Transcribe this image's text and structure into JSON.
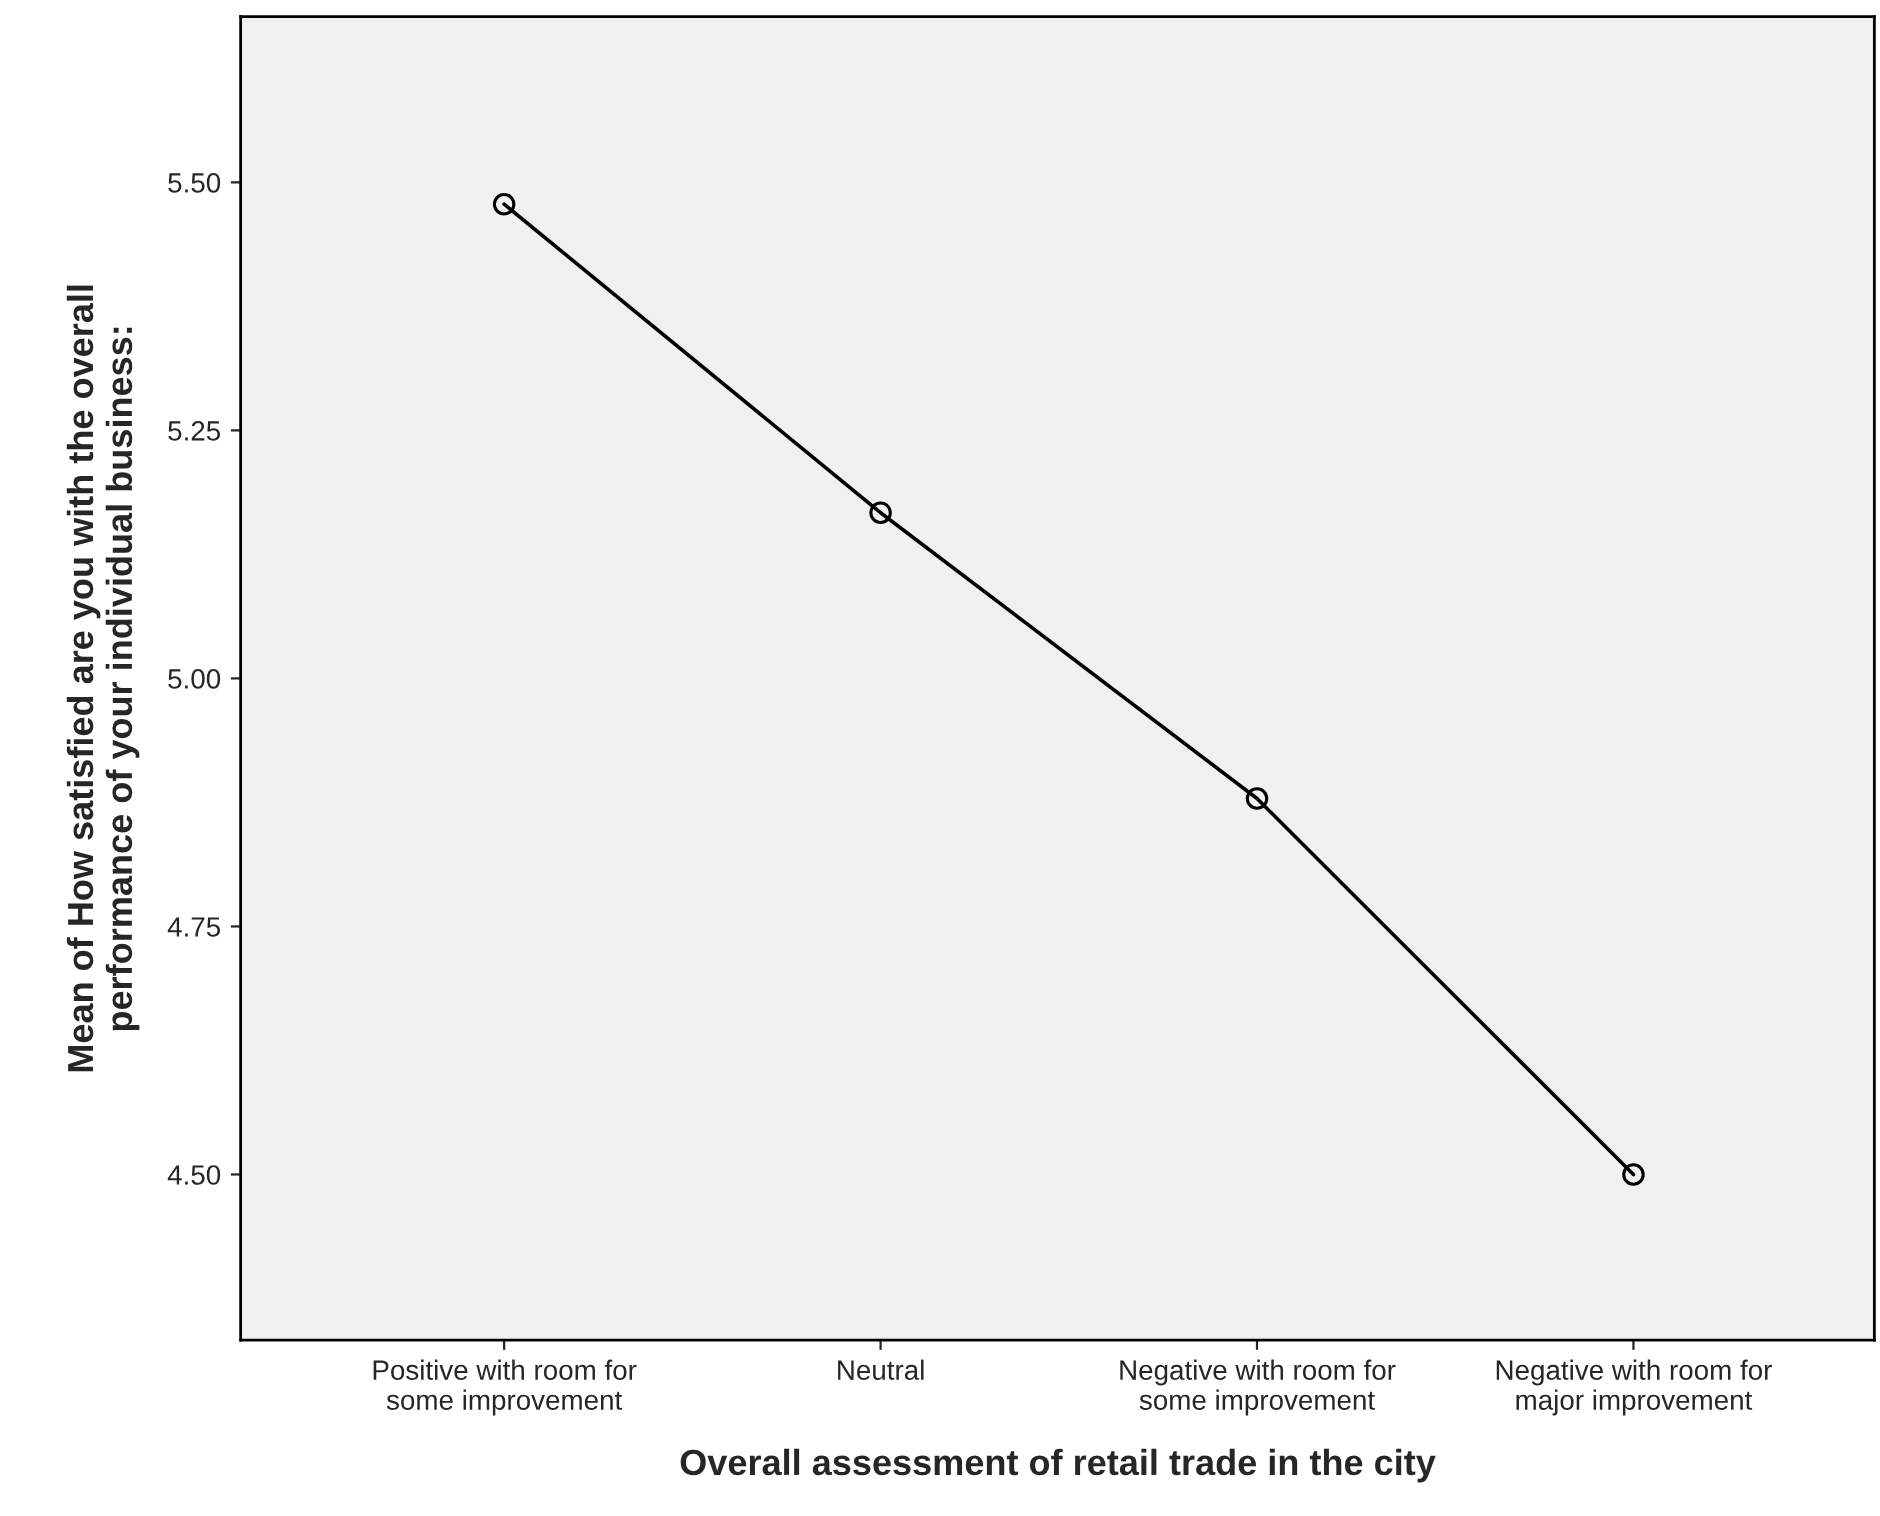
{
  "chart_data": {
    "type": "line",
    "xlabel": "Overall assessment of retail trade in the city",
    "ylabel": "Mean of How satisfied are you with the overall\nperformance of your individual business:",
    "categories": [
      "Positive with room for\nsome improvement",
      "Neutral",
      "Negative with room for\nsome improvement",
      "Negative with room for\nmajor improvement"
    ],
    "series": [
      {
        "color": "#000000",
        "values": [
          5.478,
          5.167,
          4.879,
          4.5
        ]
      }
    ],
    "ylim": [
      4.333,
      5.667
    ],
    "yticks": [
      {
        "value": 4.5,
        "label": "4.50"
      },
      {
        "value": 4.75,
        "label": "4.75"
      },
      {
        "value": 5.0,
        "label": "5.00"
      },
      {
        "value": 5.25,
        "label": "5.25"
      },
      {
        "value": 5.5,
        "label": "5.50"
      }
    ],
    "marker": "circle",
    "line_style": "solid",
    "grid": false
  }
}
